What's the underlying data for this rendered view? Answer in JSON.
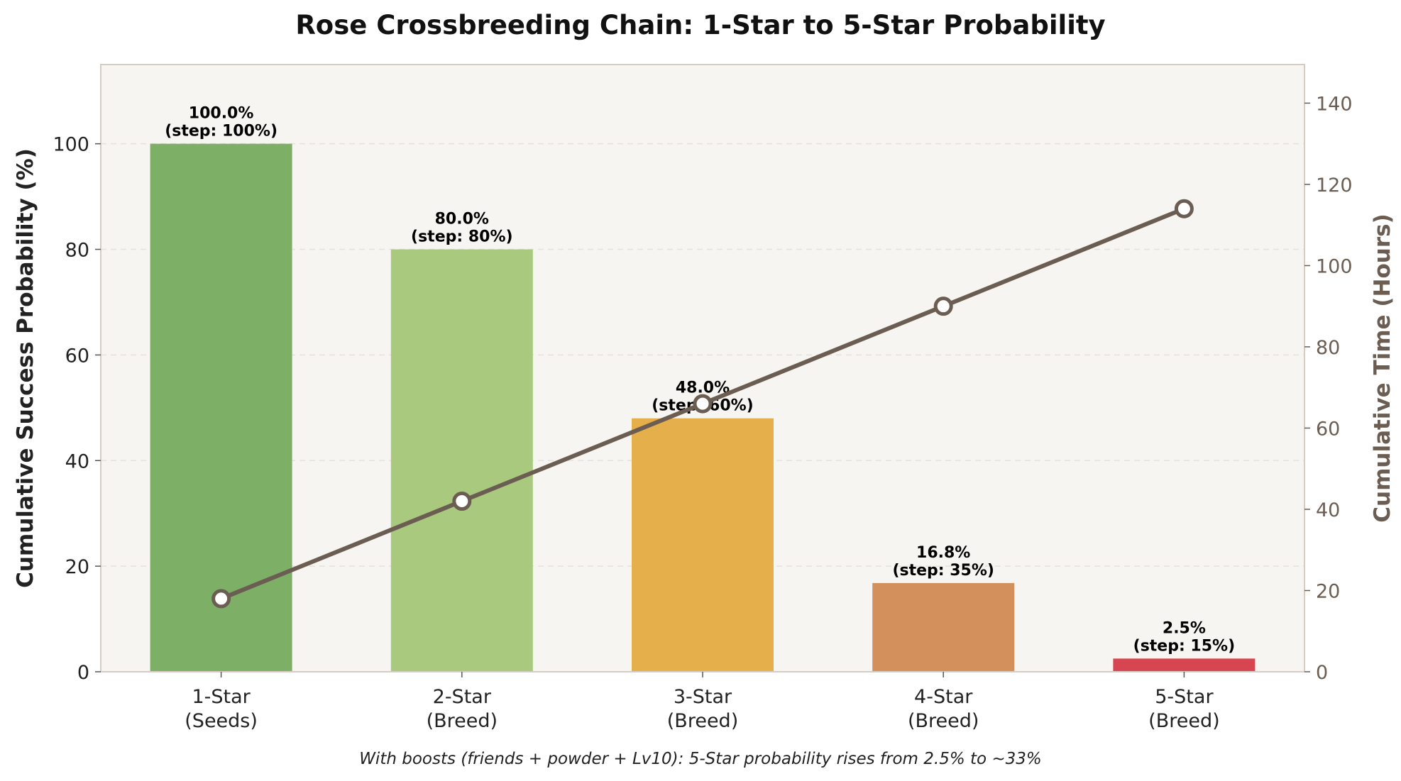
{
  "chart_data": {
    "type": "bar",
    "title": "Rose Crossbreeding Chain: 1-Star to 5-Star Probability",
    "categories": [
      [
        "1-Star",
        "(Seeds)"
      ],
      [
        "2-Star",
        "(Breed)"
      ],
      [
        "3-Star",
        "(Breed)"
      ],
      [
        "4-Star",
        "(Breed)"
      ],
      [
        "5-Star",
        "(Breed)"
      ]
    ],
    "bar_series": {
      "values": [
        100.0,
        80.0,
        48.0,
        16.8,
        2.5
      ],
      "labels": [
        [
          "100.0%",
          "(step: 100%)"
        ],
        [
          "80.0%",
          "(step: 80%)"
        ],
        [
          "48.0%",
          "(step: 60%)"
        ],
        [
          "16.8%",
          "(step: 35%)"
        ],
        [
          "2.5%",
          "(step: 15%)"
        ]
      ],
      "colors": [
        "#7daf67",
        "#a9c97f",
        "#e5af4b",
        "#d4905c",
        "#d64550"
      ]
    },
    "line_series": {
      "values": [
        18,
        42,
        66,
        90,
        114
      ],
      "color": "#6b5d52"
    },
    "ylabel": "Cumulative Success Probability (%)",
    "ylim": [
      0,
      115
    ],
    "yticks": [
      0,
      20,
      40,
      60,
      80,
      100
    ],
    "y2label": "Cumulative Time (Hours)",
    "y2lim": [
      0,
      149.5
    ],
    "y2ticks": [
      0,
      20,
      40,
      60,
      80,
      100,
      120,
      140
    ],
    "grid": true,
    "footnote": "With boosts (friends + powder + Lv10): 5-Star probability rises from 2.5% to ~33%",
    "plot_background": "#f6f5f1",
    "axis_color": "#d6ccc4"
  }
}
